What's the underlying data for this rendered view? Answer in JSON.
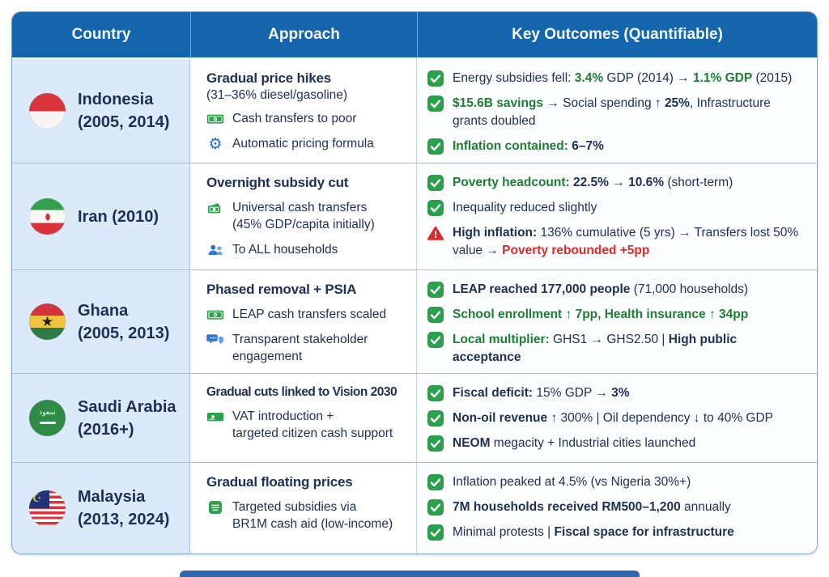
{
  "palette": {
    "header_blue": "#1565ad",
    "country_cell_blue": "#dbe9f8",
    "navy_text": "#1d3054",
    "green": "#1e7e34",
    "icon_green": "#2aa14b",
    "red": "#d92b2b",
    "border_blue": "#7aa3cf"
  },
  "table": {
    "headers": [
      {
        "label": "Country"
      },
      {
        "label": "Approach"
      },
      {
        "label": "Key Outcomes (Quantifiable)"
      }
    ],
    "rows": [
      {
        "country": {
          "flag": "indonesia",
          "lines": [
            "Indonesia",
            "(2005, 2014)"
          ]
        },
        "approach": {
          "title": "Gradual price hikes",
          "subtitle": "(31–36% diesel/gasoline)",
          "items": [
            {
              "icon": "banknote-icon",
              "lines": [
                "Cash transfers to poor"
              ]
            },
            {
              "icon": "gear-icon",
              "lines": [
                "Automatic pricing formula"
              ]
            }
          ]
        },
        "outcomes": [
          {
            "icon": "check-icon",
            "segments": [
              {
                "t": "Energy subsidies fell: ",
                "s": "n"
              },
              {
                "t": "3.4%",
                "s": "g"
              },
              {
                "t": " GDP (2014) → ",
                "s": "n"
              },
              {
                "t": "1.1% GDP",
                "s": "g"
              },
              {
                "t": " (2015)",
                "s": "n"
              }
            ]
          },
          {
            "icon": "check-icon",
            "segments": [
              {
                "t": "$15.6B savings",
                "s": "g"
              },
              {
                "t": " → Social spending ↑ ",
                "s": "n"
              },
              {
                "t": "25%",
                "s": "b"
              },
              {
                "t": ", Infrastructure grants doubled",
                "s": "n"
              }
            ]
          },
          {
            "icon": "check-icon",
            "segments": [
              {
                "t": "Inflation contained:",
                "s": "g"
              },
              {
                "t": " 6–7%",
                "s": "b"
              }
            ]
          }
        ]
      },
      {
        "country": {
          "flag": "iran",
          "lines": [
            "Iran (2010)"
          ]
        },
        "approach": {
          "title": "Overnight subsidy cut",
          "subtitle": "",
          "items": [
            {
              "icon": "wallet-icon",
              "lines": [
                "Universal cash transfers",
                "(45% GDP/capita initially)"
              ]
            },
            {
              "icon": "people-icon",
              "lines": [
                "To ALL households"
              ]
            }
          ]
        },
        "outcomes": [
          {
            "icon": "check-icon",
            "segments": [
              {
                "t": "Poverty headcount:",
                "s": "g"
              },
              {
                "t": " 22.5%",
                "s": "b"
              },
              {
                "t": " → ",
                "s": "n"
              },
              {
                "t": "10.6%",
                "s": "b"
              },
              {
                "t": " (short-term)",
                "s": "n"
              }
            ]
          },
          {
            "icon": "check-icon",
            "segments": [
              {
                "t": "Inequality reduced slightly",
                "s": "n"
              }
            ]
          },
          {
            "icon": "warning-icon",
            "segments": [
              {
                "t": "High inflation:",
                "s": "b"
              },
              {
                "t": " 136% cumulative (5 yrs) → Transfers lost 50% value → ",
                "s": "n"
              },
              {
                "t": "Poverty rebounded +5pp",
                "s": "r"
              }
            ]
          }
        ]
      },
      {
        "country": {
          "flag": "ghana",
          "lines": [
            "Ghana",
            "(2005, 2013)"
          ]
        },
        "approach": {
          "title": "Phased removal + PSIA",
          "subtitle": "",
          "items": [
            {
              "icon": "banknote-icon",
              "lines": [
                "LEAP cash transfers scaled"
              ]
            },
            {
              "icon": "chat-icon",
              "lines": [
                "Transparent stakeholder",
                "engagement"
              ]
            }
          ]
        },
        "outcomes": [
          {
            "icon": "check-icon",
            "segments": [
              {
                "t": "LEAP reached 177,000 people",
                "s": "b"
              },
              {
                "t": " (71,000 households)",
                "s": "n"
              }
            ]
          },
          {
            "icon": "check-icon",
            "segments": [
              {
                "t": "School enrollment ↑ 7pp, Health insurance ↑ 34pp",
                "s": "g"
              }
            ]
          },
          {
            "icon": "check-icon",
            "segments": [
              {
                "t": "Local multiplier:",
                "s": "g"
              },
              {
                "t": " GHS1 → GHS2.50 | ",
                "s": "n"
              },
              {
                "t": "High public acceptance",
                "s": "b"
              }
            ]
          }
        ]
      },
      {
        "country": {
          "flag": "saudi",
          "lines": [
            "Saudi Arabia",
            "(2016+)"
          ]
        },
        "approach": {
          "title": "Gradual cuts linked to Vision 2030",
          "subtitle": "",
          "items": [
            {
              "icon": "card-icon",
              "lines": [
                "VAT introduction +",
                "targeted citizen cash support"
              ]
            }
          ]
        },
        "outcomes": [
          {
            "icon": "check-icon",
            "segments": [
              {
                "t": "Fiscal deficit:",
                "s": "b"
              },
              {
                "t": " 15% GDP → ",
                "s": "n"
              },
              {
                "t": "3%",
                "s": "b"
              }
            ]
          },
          {
            "icon": "check-icon",
            "segments": [
              {
                "t": "Non-oil revenue",
                "s": "b"
              },
              {
                "t": " ↑ 300% | Oil dependency ↓ to 40% GDP",
                "s": "n"
              }
            ]
          },
          {
            "icon": "check-icon",
            "segments": [
              {
                "t": "NEOM",
                "s": "b"
              },
              {
                "t": " megacity + Industrial cities launched",
                "s": "n"
              }
            ]
          }
        ]
      },
      {
        "country": {
          "flag": "malaysia",
          "lines": [
            "Malaysia",
            "(2013, 2024)"
          ]
        },
        "approach": {
          "title": "Gradual floating prices",
          "subtitle": "",
          "items": [
            {
              "icon": "banknote-lines-icon",
              "lines": [
                "Targeted subsidies via",
                "BR1M cash aid (low-income)"
              ]
            }
          ]
        },
        "outcomes": [
          {
            "icon": "check-icon",
            "segments": [
              {
                "t": "Inflation peaked at 4.5% (vs Nigeria 30%+)",
                "s": "n"
              }
            ]
          },
          {
            "icon": "check-icon",
            "segments": [
              {
                "t": "7M households received RM500–1,200",
                "s": "b"
              },
              {
                "t": " annually",
                "s": "n"
              }
            ]
          },
          {
            "icon": "check-icon",
            "segments": [
              {
                "t": "Minimal protests | ",
                "s": "n"
              },
              {
                "t": "Fiscal space for infrastructure",
                "s": "b"
              }
            ]
          }
        ]
      }
    ]
  },
  "chart_data": {
    "type": "table",
    "columns": [
      "Country",
      "Approach",
      "Key Outcomes (Quantifiable)"
    ],
    "rows": [
      [
        "Indonesia (2005, 2014)",
        "Gradual price hikes (31–36% diesel/gasoline); Cash transfers to poor; Automatic pricing formula",
        "Energy subsidies fell: 3.4% GDP (2014) → 1.1% GDP (2015); $15.6B savings → Social spending ↑ 25%, Infrastructure grants doubled; Inflation contained: 6–7%"
      ],
      [
        "Iran (2010)",
        "Overnight subsidy cut; Universal cash transfers (45% GDP/capita initially); To ALL households",
        "Poverty headcount: 22.5% → 10.6% (short-term); Inequality reduced slightly; High inflation: 136% cumulative (5 yrs) → Transfers lost 50% value → Poverty rebounded +5pp"
      ],
      [
        "Ghana (2005, 2013)",
        "Phased removal + PSIA; LEAP cash transfers scaled; Transparent stakeholder engagement",
        "LEAP reached 177,000 people (71,000 households); School enrollment ↑ 7pp, Health insurance ↑ 34pp; Local multiplier: GHS1 → GHS2.50 | High public acceptance"
      ],
      [
        "Saudi Arabia (2016+)",
        "Gradual cuts linked to Vision 2030; VAT introduction + targeted citizen cash support",
        "Fiscal deficit: 15% GDP → 3%; Non-oil revenue ↑ 300% | Oil dependency ↓ to 40% GDP; NEOM megacity + Industrial cities launched"
      ],
      [
        "Malaysia (2013, 2024)",
        "Gradual floating prices; Targeted subsidies via BR1M cash aid (low-income)",
        "Inflation peaked at 4.5% (vs Nigeria 30%+); 7M households received RM500–1,200 annually; Minimal protests | Fiscal space for infrastructure"
      ]
    ]
  }
}
